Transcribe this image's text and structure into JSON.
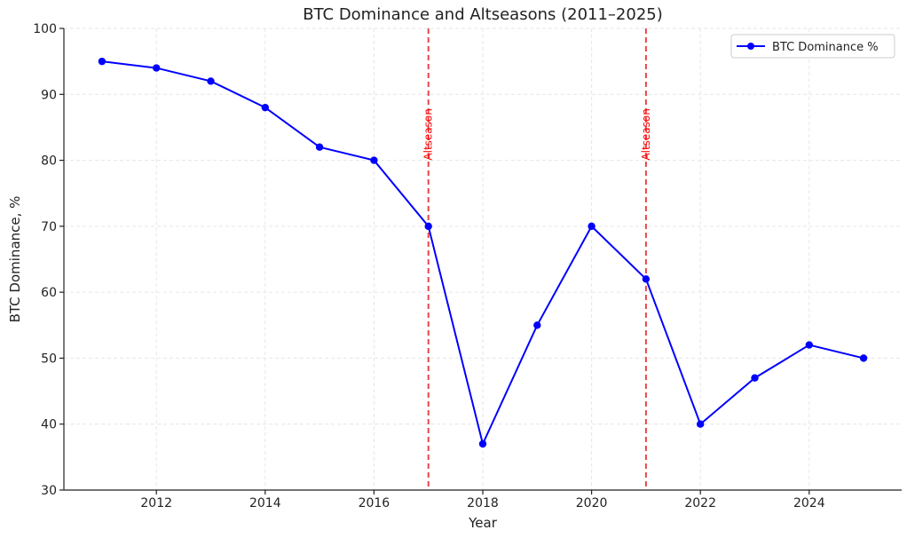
{
  "chart_data": {
    "type": "line",
    "title": "BTC Dominance and Altseasons (2011–2025)",
    "x_label": "Year",
    "y_label": "BTC Dominance, %",
    "x": [
      2011,
      2012,
      2013,
      2014,
      2015,
      2016,
      2017,
      2018,
      2019,
      2020,
      2021,
      2022,
      2023,
      2024,
      2025
    ],
    "series": [
      {
        "name": "BTC Dominance %",
        "color": "#0000ff",
        "values": [
          95,
          94,
          92,
          88,
          82,
          80,
          70,
          37,
          55,
          70,
          62,
          40,
          47,
          52,
          50
        ]
      }
    ],
    "vlines": [
      {
        "x": 2017,
        "label": "Altseason",
        "label_y": 80,
        "color": "#e8474a"
      },
      {
        "x": 2021,
        "label": "Altseason",
        "label_y": 80,
        "color": "#e8474a"
      }
    ],
    "xlim": [
      2010.3,
      2025.7
    ],
    "ylim": [
      30,
      100
    ],
    "xticks": [
      2012,
      2014,
      2016,
      2018,
      2020,
      2022,
      2024
    ],
    "yticks": [
      30,
      40,
      50,
      60,
      70,
      80,
      90,
      100
    ],
    "grid": true,
    "legend": "upper right"
  }
}
